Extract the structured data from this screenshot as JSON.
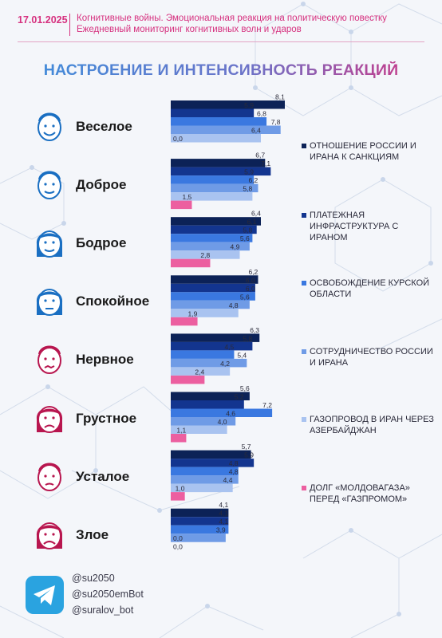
{
  "header": {
    "date": "17.01.2025",
    "line1": "Когнитивные войны. Эмоциональная реакция на политическую повестку",
    "line2": "Ежедневный мониторинг когнитивных волн и ударов"
  },
  "colors": {
    "accent_pink": "#d6317f",
    "series": [
      "#0c2257",
      "#13358f",
      "#3a78e0",
      "#6f9be6",
      "#a9c3f0",
      "#ec5fa0"
    ]
  },
  "chart_data": {
    "type": "bar",
    "orientation": "horizontal",
    "title": "НАСТРОЕНИЕ И ИНТЕНСИВНОСТЬ РЕАКЦИЙ",
    "categories": [
      "Веселое",
      "Доброе",
      "Бодрое",
      "Спокойное",
      "Нервное",
      "Грустное",
      "Усталое",
      "Злое"
    ],
    "category_icons": [
      "smiling-face-icon",
      "kind-face-icon",
      "cheerful-face-icon",
      "calm-face-icon",
      "nervous-face-icon",
      "sad-face-icon",
      "tired-face-icon",
      "angry-face-icon"
    ],
    "category_colors": [
      "#1a6fc2",
      "#1a6fc2",
      "#1a6fc2",
      "#1a6fc2",
      "#b8164f",
      "#b8164f",
      "#b8164f",
      "#b8164f"
    ],
    "series": [
      {
        "name": "ОТНОШЕНИЕ РОССИИ И ИРАНА К САНКЦИЯМ",
        "values": [
          8.1,
          6.7,
          6.4,
          6.2,
          6.3,
          5.6,
          5.7,
          4.1
        ]
      },
      {
        "name": "ПЛАТЕЖНАЯ ИНФРАСТРУКТУРА С ИРАНОМ",
        "values": [
          5.9,
          7.1,
          6.1,
          6.0,
          5.8,
          5.2,
          5.9,
          4.1
        ]
      },
      {
        "name": "ОСВОБОЖДЕНИЕ КУРСКОЙ ОБЛАСТИ",
        "values": [
          6.8,
          5.9,
          5.8,
          6.0,
          4.5,
          7.2,
          4.8,
          4.1
        ]
      },
      {
        "name": "СОТРУДНИЧЕСТВО РОССИИ И ИРАНА",
        "values": [
          7.8,
          6.2,
          5.6,
          5.6,
          5.4,
          4.6,
          4.8,
          3.9
        ]
      },
      {
        "name": "ГАЗОПРОВОД В ИРАН ЧЕРЕЗ АЗЕРБАЙДЖАН",
        "values": [
          6.4,
          5.8,
          4.9,
          4.8,
          4.2,
          4.0,
          4.4,
          0.0
        ]
      },
      {
        "name": "ДОЛГ «МОЛДОВАГАЗА» ПЕРЕД «ГАЗПРОМОМ»",
        "values": [
          0.0,
          1.5,
          2.8,
          1.9,
          2.4,
          1.1,
          1.0,
          0.0
        ]
      }
    ],
    "value_labels": [
      [
        "8,1",
        "5,9",
        "6,8",
        "7,8",
        "6,4",
        "0,0"
      ],
      [
        "6,7",
        "7,1",
        "5,9",
        "6,2",
        "5,8",
        "1,5"
      ],
      [
        "6,4",
        "6,1",
        "5,8",
        "5,6",
        "4,9",
        "2,8"
      ],
      [
        "6,2",
        "6,0",
        "6,0",
        "5,6",
        "4,8",
        "1,9"
      ],
      [
        "6,3",
        "5,8",
        "4,5",
        "5,4",
        "4,2",
        "2,4"
      ],
      [
        "5,6",
        "5,2",
        "7,2",
        "4,6",
        "4,0",
        "1,1"
      ],
      [
        "5,7",
        "5,9",
        "4,8",
        "4,8",
        "4,4",
        "1,0"
      ],
      [
        "4,1",
        "4,1",
        "4,1",
        "3,9",
        "0,0",
        "0,0"
      ]
    ],
    "xlim": [
      0,
      10
    ],
    "grid": false,
    "legend_position": "right"
  },
  "footer": {
    "icon": "telegram-icon",
    "handles": [
      "@su2050",
      "@su2050emBot",
      "@suralov_bot"
    ]
  }
}
